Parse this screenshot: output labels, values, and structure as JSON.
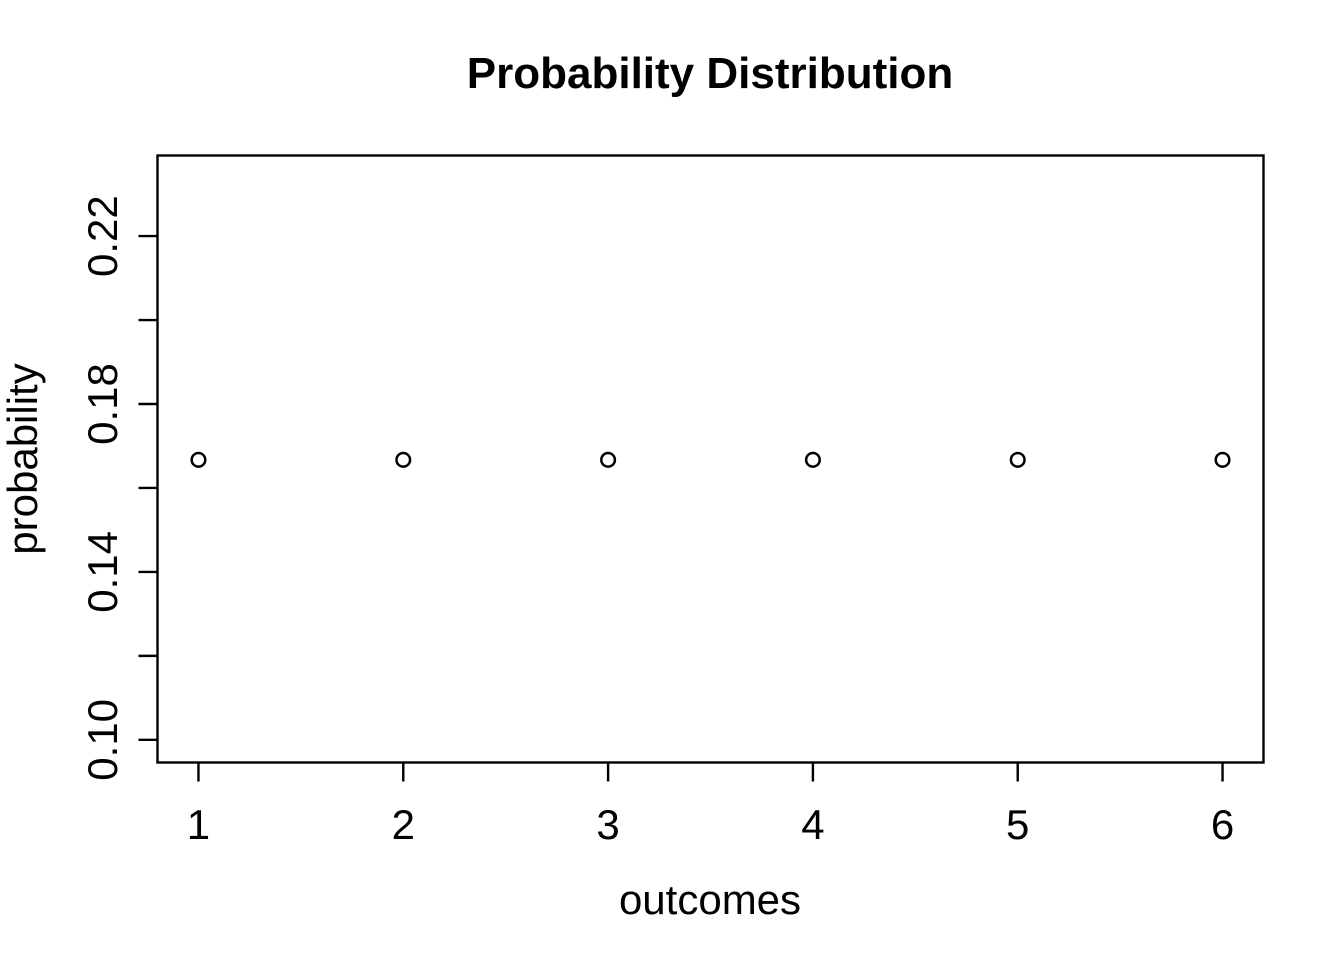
{
  "title": "Probability Distribution",
  "chart_data": {
    "type": "scatter",
    "title": "Probability Distribution",
    "xlabel": "outcomes",
    "ylabel": "probability",
    "x": [
      1,
      2,
      3,
      4,
      5,
      6
    ],
    "y": [
      0.1667,
      0.1667,
      0.1667,
      0.1667,
      0.1667,
      0.1667
    ],
    "series": [
      {
        "name": "probability",
        "x": [
          1,
          2,
          3,
          4,
          5,
          6
        ],
        "y": [
          0.1667,
          0.1667,
          0.1667,
          0.1667,
          0.1667,
          0.1667
        ]
      }
    ],
    "xlim": [
      0.8,
      6.2
    ],
    "ylim": [
      0.0946,
      0.2392
    ],
    "x_ticks": [
      1,
      2,
      3,
      4,
      5,
      6
    ],
    "x_tick_labels": [
      "1",
      "2",
      "3",
      "4",
      "5",
      "6"
    ],
    "y_ticks": [
      0.1,
      0.12,
      0.14,
      0.16,
      0.18,
      0.2,
      0.22
    ],
    "y_tick_labels": [
      "0.10",
      "",
      "0.14",
      "",
      "0.18",
      "",
      "0.22"
    ],
    "marker": "open-circle",
    "grid": false,
    "legend": null,
    "colors": {
      "foreground": "#000000",
      "background": "#ffffff"
    }
  }
}
